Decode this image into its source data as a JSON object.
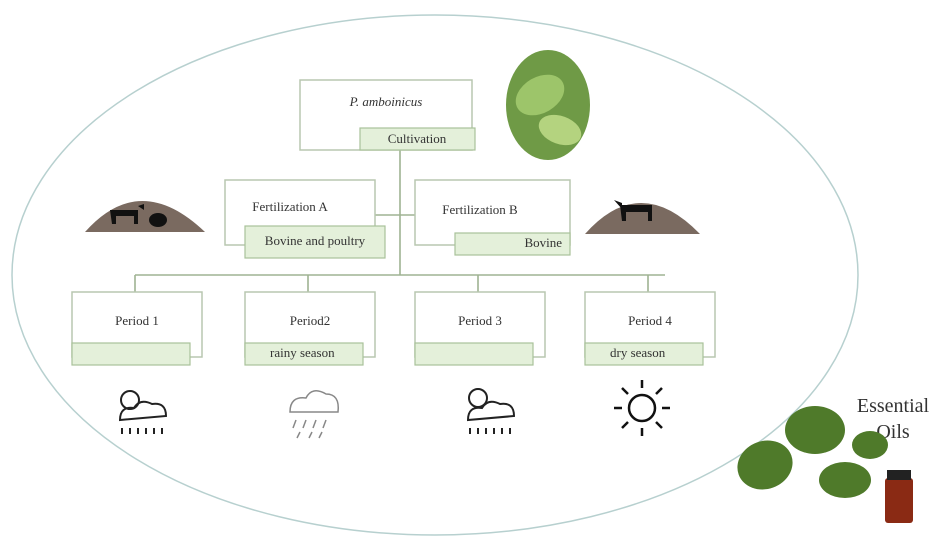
{
  "title": {
    "species": "P. amboinicus",
    "tag": "Cultivation"
  },
  "fertilizations": [
    {
      "label": "Fertilization A",
      "tag": "Bovine and poultry"
    },
    {
      "label": "Fertilization B",
      "tag": "Bovine"
    }
  ],
  "periods": [
    {
      "label": "Period 1",
      "tag": ""
    },
    {
      "label": "Period2",
      "tag": "rainy season"
    },
    {
      "label": "Period 3",
      "tag": ""
    },
    {
      "label": "Period 4",
      "tag": "dry season"
    }
  ],
  "product": "Essential Oils"
}
